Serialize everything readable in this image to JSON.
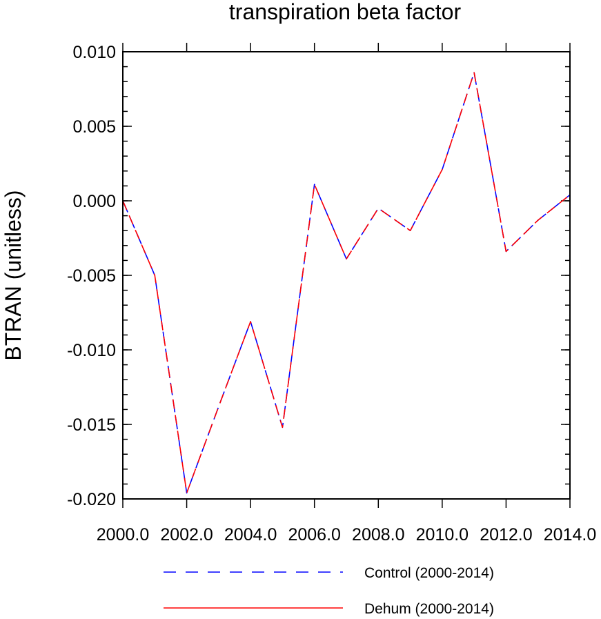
{
  "chart_data": {
    "type": "line",
    "title": "transpiration beta factor",
    "ylabel": "BTRAN  (unitless)",
    "xlabel": "",
    "xlim": [
      2000,
      2014
    ],
    "ylim": [
      -0.02,
      0.01
    ],
    "x_ticks": [
      2000,
      2002,
      2004,
      2006,
      2008,
      2010,
      2012,
      2014
    ],
    "x_tick_labels": [
      "2000.0",
      "2002.0",
      "2004.0",
      "2006.0",
      "2008.0",
      "2010.0",
      "2012.0",
      "2014.0"
    ],
    "y_ticks": [
      0.01,
      0.005,
      0.0,
      -0.005,
      -0.01,
      -0.015,
      -0.02
    ],
    "y_tick_labels": [
      "0.010",
      "0.005",
      "0.000",
      "-0.005",
      "-0.010",
      "-0.015",
      "-0.020"
    ],
    "grid": false,
    "legend_position": "bottom",
    "x": [
      2000,
      2001,
      2002,
      2003,
      2004,
      2005,
      2006,
      2007,
      2008,
      2009,
      2010,
      2011,
      2012,
      2013,
      2014
    ],
    "series": [
      {
        "name": "Control (2000-2014)",
        "color": "#0000ff",
        "style": "dashed",
        "values": [
          0.0,
          -0.005,
          -0.0196,
          -0.0138,
          -0.0081,
          -0.0152,
          0.0011,
          -0.0039,
          -0.0005,
          -0.002,
          0.0021,
          0.0086,
          -0.0034,
          -0.0013,
          0.0004
        ]
      },
      {
        "name": "Dehum (2000-2014)",
        "color": "#ff0000",
        "style": "solid",
        "values": [
          0.0,
          -0.005,
          -0.0196,
          -0.0138,
          -0.0081,
          -0.0152,
          0.0011,
          -0.0039,
          -0.0005,
          -0.002,
          0.0021,
          0.0086,
          -0.0034,
          -0.0013,
          0.0004
        ]
      }
    ]
  }
}
